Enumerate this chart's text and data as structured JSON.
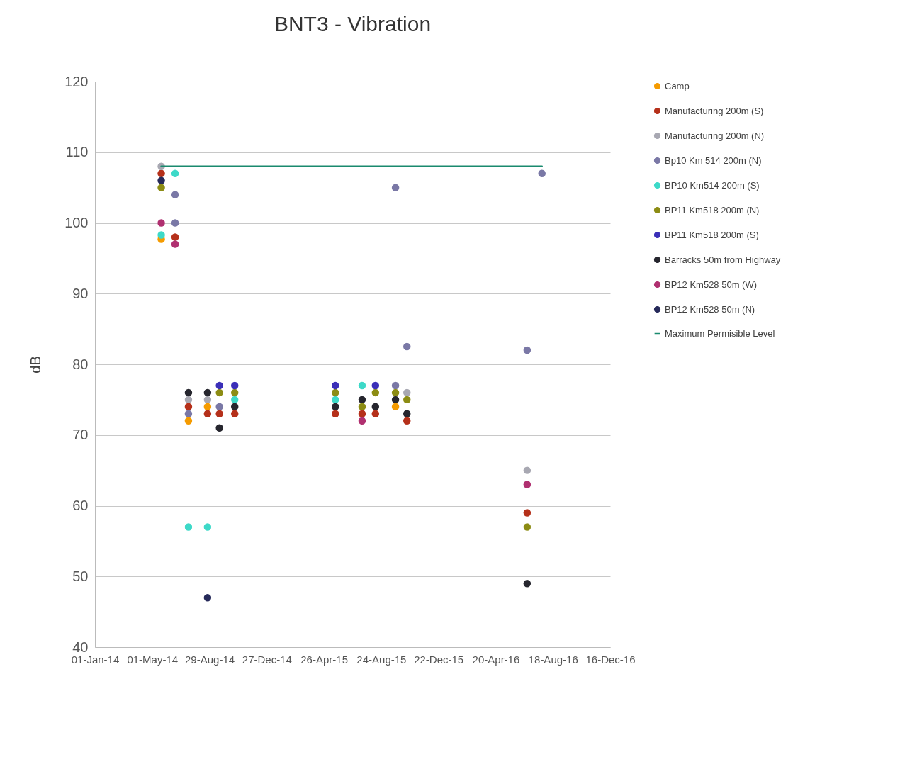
{
  "chart_data": {
    "type": "scatter",
    "title": "BNT3 - Vibration",
    "ylabel": "dB",
    "marker": "circle",
    "grid": "y",
    "legend": "right",
    "xlim": [
      "2014-01-01",
      "2016-12-16"
    ],
    "xticks": [
      {
        "value": "2014-01-01",
        "label": "01-Jan-14"
      },
      {
        "value": "2014-05-01",
        "label": "01-May-14"
      },
      {
        "value": "2014-08-29",
        "label": "29-Aug-14"
      },
      {
        "value": "2014-12-27",
        "label": "27-Dec-14"
      },
      {
        "value": "2015-04-26",
        "label": "26-Apr-15"
      },
      {
        "value": "2015-08-24",
        "label": "24-Aug-15"
      },
      {
        "value": "2015-12-22",
        "label": "22-Dec-15"
      },
      {
        "value": "2016-04-20",
        "label": "20-Apr-16"
      },
      {
        "value": "2016-08-18",
        "label": "18-Aug-16"
      },
      {
        "value": "2016-12-16",
        "label": "16-Dec-16"
      }
    ],
    "ylim": [
      40,
      120
    ],
    "yticks": [
      40,
      50,
      60,
      70,
      80,
      90,
      100,
      110,
      120
    ],
    "series": [
      {
        "name": "Camp",
        "color": "#f59b00",
        "x": [
          "2014-05-20",
          "2014-07-16",
          "2014-08-25",
          "2015-09-23"
        ],
        "values": [
          97.7,
          72,
          74,
          74
        ]
      },
      {
        "name": "Manufacturing 200m (S)",
        "color": "#b5301a",
        "x": [
          "2014-05-20",
          "2014-06-18",
          "2014-07-16",
          "2014-08-25",
          "2014-09-19",
          "2014-10-21",
          "2015-05-20",
          "2015-07-15",
          "2015-08-12",
          "2015-10-17",
          "2016-06-25"
        ],
        "values": [
          107,
          98,
          74,
          73,
          73,
          73,
          73,
          73,
          73,
          72,
          59
        ]
      },
      {
        "name": "Manufacturing 200m (N)",
        "color": "#a8a8b2",
        "x": [
          "2014-05-20",
          "2014-07-16",
          "2014-08-25",
          "2015-10-17",
          "2016-06-25"
        ],
        "values": [
          108,
          75,
          75,
          76,
          65
        ]
      },
      {
        "name": "Bp10 Km 514 200m (N)",
        "color": "#7a78a6",
        "x": [
          "2014-06-18",
          "2014-06-18",
          "2014-07-16",
          "2014-09-19",
          "2015-09-23",
          "2015-10-17",
          "2015-09-23",
          "2016-06-25",
          "2016-07-26"
        ],
        "values": [
          104,
          100,
          73,
          74,
          77,
          82.5,
          105,
          82,
          107
        ]
      },
      {
        "name": "BP10 Km514 200m (S)",
        "color": "#3dd9c8",
        "x": [
          "2014-05-20",
          "2014-06-18",
          "2014-07-16",
          "2014-08-25",
          "2014-10-21",
          "2015-05-20",
          "2015-07-15"
        ],
        "values": [
          98.3,
          107,
          57,
          57,
          75,
          75,
          77
        ]
      },
      {
        "name": "BP11 Km518 200m (N)",
        "color": "#8c8c14",
        "x": [
          "2014-05-20",
          "2014-09-19",
          "2014-10-21",
          "2015-05-20",
          "2015-07-15",
          "2015-08-12",
          "2015-09-23",
          "2015-10-17",
          "2016-06-25"
        ],
        "values": [
          105,
          76,
          76,
          76,
          74,
          76,
          76,
          75,
          57
        ]
      },
      {
        "name": "BP11 Km518 200m (S)",
        "color": "#3b2fb8",
        "x": [
          "2014-09-19",
          "2014-10-21",
          "2015-05-20",
          "2015-08-12"
        ],
        "values": [
          77,
          77,
          77,
          77
        ]
      },
      {
        "name": "Barracks 50m from Highway",
        "color": "#26262e",
        "x": [
          "2014-07-16",
          "2014-08-25",
          "2014-09-19",
          "2014-10-21",
          "2015-05-20",
          "2015-07-15",
          "2015-08-12",
          "2015-09-23",
          "2015-10-17",
          "2016-06-25"
        ],
        "values": [
          76,
          76,
          71,
          74,
          74,
          75,
          74,
          75,
          73,
          49
        ]
      },
      {
        "name": "BP12 Km528 50m (W)",
        "color": "#b03070",
        "x": [
          "2014-05-20",
          "2014-06-18",
          "2015-07-15",
          "2016-06-25"
        ],
        "values": [
          100,
          97,
          72,
          63
        ]
      },
      {
        "name": "BP12 Km528 50m (N)",
        "color": "#262a5a",
        "x": [
          "2014-05-20",
          "2014-08-25"
        ],
        "values": [
          106,
          47
        ]
      },
      {
        "name": "Maximum Permisible Level",
        "type": "line",
        "marker": "none",
        "color": "#1a8a6e",
        "x": [
          "2014-05-20",
          "2016-07-26"
        ],
        "values": [
          108,
          108
        ]
      }
    ]
  }
}
